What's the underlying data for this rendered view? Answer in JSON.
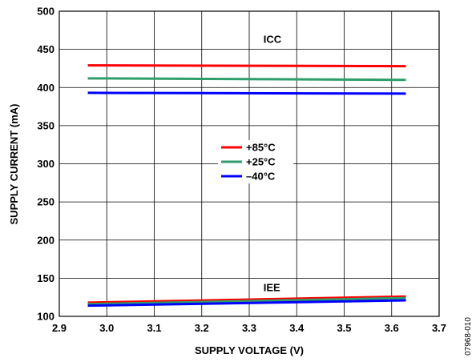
{
  "chart_data": {
    "type": "line",
    "xlabel": "SUPPLY VOLTAGE (V)",
    "ylabel": "SUPPLY CURRENT (mA)",
    "xlim": [
      2.9,
      3.7
    ],
    "ylim": [
      100,
      500
    ],
    "xticks": [
      "2.9",
      "3.0",
      "3.1",
      "3.2",
      "3.3",
      "3.4",
      "3.5",
      "3.6",
      "3.7"
    ],
    "yticks": [
      "100",
      "150",
      "200",
      "250",
      "300",
      "350",
      "400",
      "450",
      "500"
    ],
    "grid": true,
    "legend_position": "center",
    "series": [
      {
        "name": "+85°C",
        "group": "ICC",
        "color": "#ff0000",
        "x": [
          2.96,
          3.63
        ],
        "y": [
          429,
          428
        ]
      },
      {
        "name": "+25°C",
        "group": "ICC",
        "color": "#2e9e6b",
        "x": [
          2.96,
          3.63
        ],
        "y": [
          412,
          410
        ]
      },
      {
        "name": "–40°C",
        "group": "ICC",
        "color": "#0000ff",
        "x": [
          2.96,
          3.63
        ],
        "y": [
          393,
          392
        ]
      },
      {
        "name": "+85°C",
        "group": "IEE",
        "color": "#ff0000",
        "x": [
          2.96,
          3.63
        ],
        "y": [
          118,
          126
        ]
      },
      {
        "name": "+25°C",
        "group": "IEE",
        "color": "#2e9e6b",
        "x": [
          2.96,
          3.63
        ],
        "y": [
          116,
          124
        ]
      },
      {
        "name": "–40°C",
        "group": "IEE",
        "color": "#0000ff",
        "x": [
          2.96,
          3.63
        ],
        "y": [
          114,
          121
        ]
      }
    ],
    "legend": [
      {
        "label": "+85°C",
        "color": "#ff0000"
      },
      {
        "label": "+25°C",
        "color": "#2e9e6b"
      },
      {
        "label": "–40°C",
        "color": "#0000ff"
      }
    ],
    "annotations": [
      {
        "text": "ICC",
        "x": 3.33,
        "y": 463
      },
      {
        "text": "IEE",
        "x": 3.33,
        "y": 138
      }
    ]
  },
  "figure_id": "07968-010"
}
